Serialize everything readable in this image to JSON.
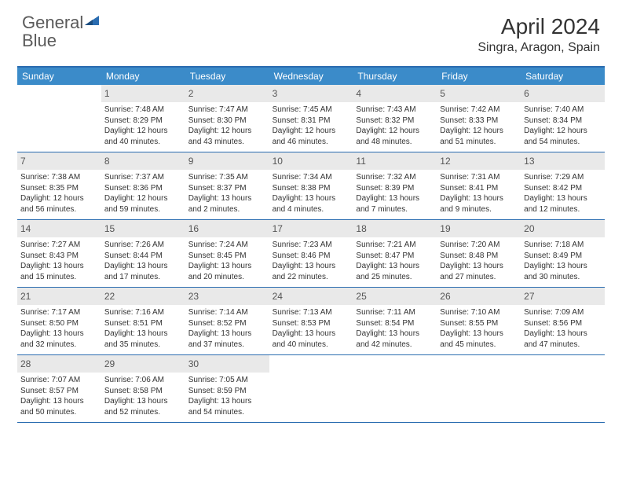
{
  "logo": {
    "text_gray": "General",
    "text_blue": "Blue"
  },
  "title": "April 2024",
  "location": "Singra, Aragon, Spain",
  "colors": {
    "header_bg": "#3b8bc9",
    "border": "#2a6cb0",
    "daynum_bg": "#e9e9e9",
    "text": "#333333"
  },
  "day_headers": [
    "Sunday",
    "Monday",
    "Tuesday",
    "Wednesday",
    "Thursday",
    "Friday",
    "Saturday"
  ],
  "weeks": [
    [
      {
        "blank": true
      },
      {
        "n": "1",
        "sunrise": "7:48 AM",
        "sunset": "8:29 PM",
        "daylight": "12 hours and 40 minutes."
      },
      {
        "n": "2",
        "sunrise": "7:47 AM",
        "sunset": "8:30 PM",
        "daylight": "12 hours and 43 minutes."
      },
      {
        "n": "3",
        "sunrise": "7:45 AM",
        "sunset": "8:31 PM",
        "daylight": "12 hours and 46 minutes."
      },
      {
        "n": "4",
        "sunrise": "7:43 AM",
        "sunset": "8:32 PM",
        "daylight": "12 hours and 48 minutes."
      },
      {
        "n": "5",
        "sunrise": "7:42 AM",
        "sunset": "8:33 PM",
        "daylight": "12 hours and 51 minutes."
      },
      {
        "n": "6",
        "sunrise": "7:40 AM",
        "sunset": "8:34 PM",
        "daylight": "12 hours and 54 minutes."
      }
    ],
    [
      {
        "n": "7",
        "sunrise": "7:38 AM",
        "sunset": "8:35 PM",
        "daylight": "12 hours and 56 minutes."
      },
      {
        "n": "8",
        "sunrise": "7:37 AM",
        "sunset": "8:36 PM",
        "daylight": "12 hours and 59 minutes."
      },
      {
        "n": "9",
        "sunrise": "7:35 AM",
        "sunset": "8:37 PM",
        "daylight": "13 hours and 2 minutes."
      },
      {
        "n": "10",
        "sunrise": "7:34 AM",
        "sunset": "8:38 PM",
        "daylight": "13 hours and 4 minutes."
      },
      {
        "n": "11",
        "sunrise": "7:32 AM",
        "sunset": "8:39 PM",
        "daylight": "13 hours and 7 minutes."
      },
      {
        "n": "12",
        "sunrise": "7:31 AM",
        "sunset": "8:41 PM",
        "daylight": "13 hours and 9 minutes."
      },
      {
        "n": "13",
        "sunrise": "7:29 AM",
        "sunset": "8:42 PM",
        "daylight": "13 hours and 12 minutes."
      }
    ],
    [
      {
        "n": "14",
        "sunrise": "7:27 AM",
        "sunset": "8:43 PM",
        "daylight": "13 hours and 15 minutes."
      },
      {
        "n": "15",
        "sunrise": "7:26 AM",
        "sunset": "8:44 PM",
        "daylight": "13 hours and 17 minutes."
      },
      {
        "n": "16",
        "sunrise": "7:24 AM",
        "sunset": "8:45 PM",
        "daylight": "13 hours and 20 minutes."
      },
      {
        "n": "17",
        "sunrise": "7:23 AM",
        "sunset": "8:46 PM",
        "daylight": "13 hours and 22 minutes."
      },
      {
        "n": "18",
        "sunrise": "7:21 AM",
        "sunset": "8:47 PM",
        "daylight": "13 hours and 25 minutes."
      },
      {
        "n": "19",
        "sunrise": "7:20 AM",
        "sunset": "8:48 PM",
        "daylight": "13 hours and 27 minutes."
      },
      {
        "n": "20",
        "sunrise": "7:18 AM",
        "sunset": "8:49 PM",
        "daylight": "13 hours and 30 minutes."
      }
    ],
    [
      {
        "n": "21",
        "sunrise": "7:17 AM",
        "sunset": "8:50 PM",
        "daylight": "13 hours and 32 minutes."
      },
      {
        "n": "22",
        "sunrise": "7:16 AM",
        "sunset": "8:51 PM",
        "daylight": "13 hours and 35 minutes."
      },
      {
        "n": "23",
        "sunrise": "7:14 AM",
        "sunset": "8:52 PM",
        "daylight": "13 hours and 37 minutes."
      },
      {
        "n": "24",
        "sunrise": "7:13 AM",
        "sunset": "8:53 PM",
        "daylight": "13 hours and 40 minutes."
      },
      {
        "n": "25",
        "sunrise": "7:11 AM",
        "sunset": "8:54 PM",
        "daylight": "13 hours and 42 minutes."
      },
      {
        "n": "26",
        "sunrise": "7:10 AM",
        "sunset": "8:55 PM",
        "daylight": "13 hours and 45 minutes."
      },
      {
        "n": "27",
        "sunrise": "7:09 AM",
        "sunset": "8:56 PM",
        "daylight": "13 hours and 47 minutes."
      }
    ],
    [
      {
        "n": "28",
        "sunrise": "7:07 AM",
        "sunset": "8:57 PM",
        "daylight": "13 hours and 50 minutes."
      },
      {
        "n": "29",
        "sunrise": "7:06 AM",
        "sunset": "8:58 PM",
        "daylight": "13 hours and 52 minutes."
      },
      {
        "n": "30",
        "sunrise": "7:05 AM",
        "sunset": "8:59 PM",
        "daylight": "13 hours and 54 minutes."
      },
      {
        "blank": true
      },
      {
        "blank": true
      },
      {
        "blank": true
      },
      {
        "blank": true
      }
    ]
  ],
  "labels": {
    "sunrise": "Sunrise:",
    "sunset": "Sunset:",
    "daylight": "Daylight:"
  }
}
